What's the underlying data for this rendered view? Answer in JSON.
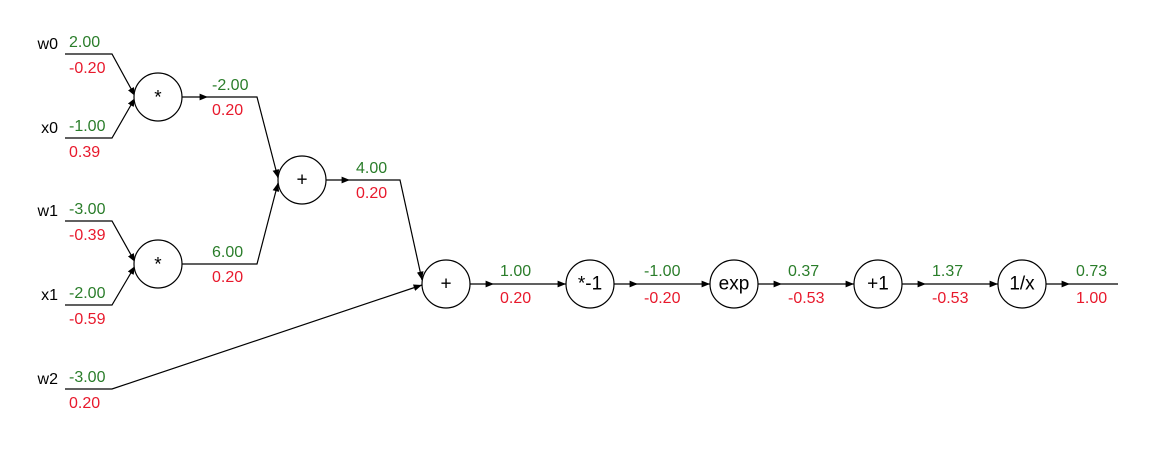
{
  "inputs": [
    {
      "name": "w0",
      "value": "2.00",
      "grad": "-0.20"
    },
    {
      "name": "x0",
      "value": "-1.00",
      "grad": "0.39"
    },
    {
      "name": "w1",
      "value": "-3.00",
      "grad": "-0.39"
    },
    {
      "name": "x1",
      "value": "-2.00",
      "grad": "-0.59"
    },
    {
      "name": "w2",
      "value": "-3.00",
      "grad": "0.20"
    }
  ],
  "nodes": [
    {
      "id": "mul0",
      "op": "*",
      "value": "-2.00",
      "grad": "0.20"
    },
    {
      "id": "mul1",
      "op": "*",
      "value": "6.00",
      "grad": "0.20"
    },
    {
      "id": "add0",
      "op": "+",
      "value": "4.00",
      "grad": "0.20"
    },
    {
      "id": "add1",
      "op": "+",
      "value": "1.00",
      "grad": "0.20"
    },
    {
      "id": "neg",
      "op": "*-1",
      "value": "-1.00",
      "grad": "-0.20"
    },
    {
      "id": "exp",
      "op": "exp",
      "value": "0.37",
      "grad": "-0.53"
    },
    {
      "id": "plus1",
      "op": "+1",
      "value": "1.37",
      "grad": "-0.53"
    },
    {
      "id": "recip",
      "op": "1/x",
      "value": "0.73",
      "grad": "1.00"
    }
  ],
  "colors": {
    "forward_value": "#2a7d2a",
    "gradient": "#e8192c"
  }
}
